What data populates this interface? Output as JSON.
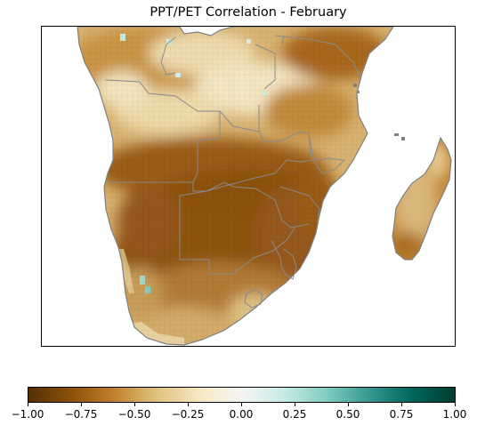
{
  "title": "PPT/PET Correlation - February",
  "colorbar": {
    "min": -1.0,
    "max": 1.0,
    "colormap": "BrBG",
    "ticks": [
      "−1.00",
      "−0.75",
      "−0.50",
      "−0.25",
      "0.00",
      "0.25",
      "0.50",
      "0.75",
      "1.00"
    ],
    "tick_values": [
      -1.0,
      -0.75,
      -0.5,
      -0.25,
      0.0,
      0.25,
      0.5,
      0.75,
      1.0
    ],
    "stops": [
      "#543005",
      "#8c510a",
      "#bf812d",
      "#dfc27d",
      "#f6e8c3",
      "#f5f5f5",
      "#c7eae5",
      "#80cdc1",
      "#35978f",
      "#01665e",
      "#003c30"
    ]
  },
  "map": {
    "region": "Southern Africa",
    "coastline_color": "#808080",
    "land_colors": {
      "strong_negative": "#8c510a",
      "moderate_negative": "#bf812d",
      "weak_negative": "#dfc27d",
      "near_zero": "#f6e8c3",
      "weak_positive": "#c7eae5"
    }
  }
}
